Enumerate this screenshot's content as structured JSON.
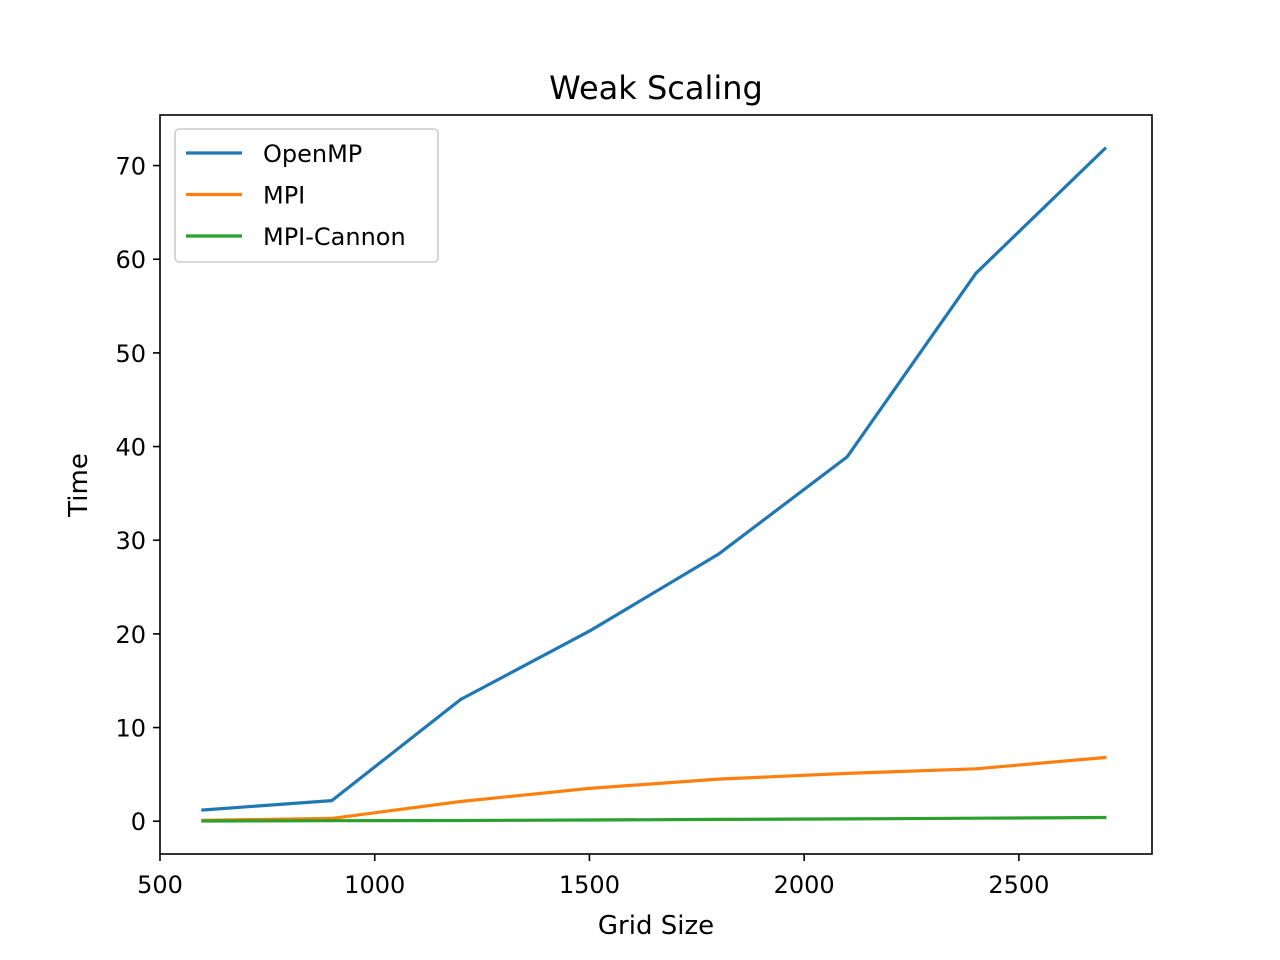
{
  "chart_data": {
    "type": "line",
    "title": "Weak Scaling",
    "xlabel": "Grid Size",
    "ylabel": "Time",
    "x": [
      600,
      900,
      1200,
      1500,
      1800,
      2100,
      2400,
      2700
    ],
    "xlim": [
      500,
      2810
    ],
    "ylim": [
      -3.5,
      75.4
    ],
    "xticks": [
      500,
      1000,
      1500,
      2000,
      2500
    ],
    "yticks": [
      0,
      10,
      20,
      30,
      40,
      50,
      60,
      70
    ],
    "grid": false,
    "legend_position": "top-left",
    "series": [
      {
        "name": "OpenMP",
        "color": "#1f77b4",
        "values": [
          1.2,
          2.2,
          13.0,
          20.3,
          28.5,
          38.9,
          58.5,
          71.8
        ]
      },
      {
        "name": "MPI",
        "color": "#ff7f0e",
        "values": [
          0.1,
          0.3,
          2.1,
          3.5,
          4.5,
          5.1,
          5.6,
          6.8
        ]
      },
      {
        "name": "MPI-Cannon",
        "color": "#2ca02c",
        "values": [
          0.02,
          0.05,
          0.08,
          0.13,
          0.19,
          0.25,
          0.32,
          0.4
        ]
      }
    ]
  }
}
